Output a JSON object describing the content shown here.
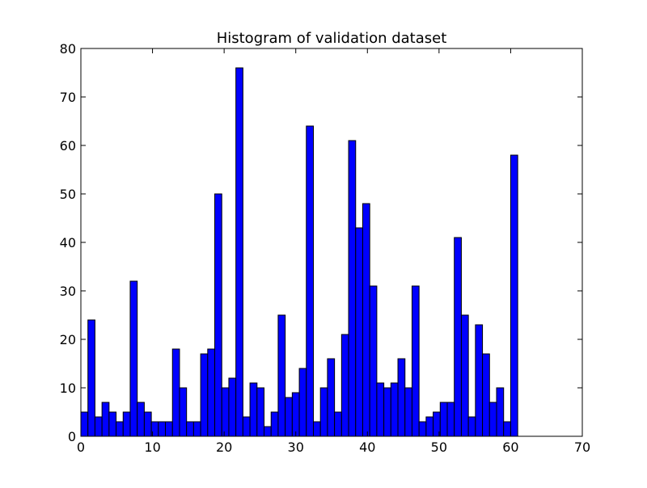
{
  "chart_data": {
    "type": "bar",
    "title": "Histogram of validation dataset",
    "xlabel": "",
    "ylabel": "",
    "xlim": [
      0,
      70
    ],
    "ylim": [
      0,
      80
    ],
    "x_ticks": [
      0,
      10,
      20,
      30,
      40,
      50,
      60,
      70
    ],
    "y_ticks": [
      0,
      10,
      20,
      30,
      40,
      50,
      60,
      70,
      80
    ],
    "x_tick_labels": [
      "0",
      "10",
      "20",
      "30",
      "40",
      "50",
      "60",
      "70"
    ],
    "y_tick_labels": [
      "0",
      "10",
      "20",
      "30",
      "40",
      "50",
      "60",
      "70",
      "80"
    ],
    "bin_width": 0.9836,
    "bin_start": 0,
    "categories": [
      0,
      1,
      2,
      3,
      4,
      5,
      6,
      7,
      8,
      9,
      10,
      11,
      12,
      13,
      14,
      15,
      16,
      17,
      18,
      19,
      20,
      21,
      22,
      23,
      24,
      25,
      26,
      27,
      28,
      29,
      30,
      31,
      32,
      33,
      34,
      35,
      36,
      37,
      38,
      39,
      40,
      41,
      42,
      43,
      44,
      45,
      46,
      47,
      48,
      49,
      50,
      51,
      52,
      53,
      54,
      55,
      56,
      57,
      58,
      59,
      60,
      61
    ],
    "values": [
      5,
      24,
      4,
      7,
      5,
      3,
      5,
      32,
      7,
      5,
      3,
      3,
      3,
      18,
      10,
      3,
      3,
      17,
      18,
      50,
      10,
      12,
      76,
      4,
      11,
      10,
      2,
      5,
      25,
      8,
      9,
      14,
      64,
      3,
      10,
      16,
      5,
      21,
      61,
      43,
      48,
      31,
      11,
      10,
      11,
      16,
      10,
      31,
      3,
      4,
      5,
      7,
      7,
      41,
      25,
      4,
      23,
      17,
      7,
      10,
      3,
      58
    ],
    "bar_color": "#0000ff",
    "edge_color": "#000000",
    "grid": false,
    "legend": "none"
  }
}
